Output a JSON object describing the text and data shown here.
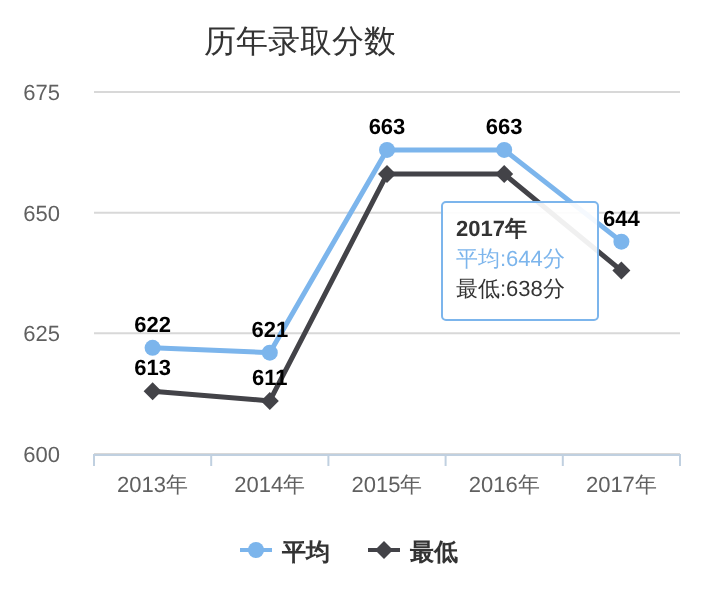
{
  "chart_data": {
    "type": "line",
    "title": "历年录取分数",
    "categories": [
      "2013年",
      "2014年",
      "2015年",
      "2016年",
      "2017年"
    ],
    "series": [
      {
        "name": "平均",
        "color": "#7cb5ec",
        "marker": "circle",
        "values": [
          622,
          621,
          663,
          663,
          644
        ],
        "value_labels": [
          "622",
          "621",
          "663",
          "663",
          "644"
        ]
      },
      {
        "name": "最低",
        "color": "#434348",
        "marker": "diamond",
        "values": [
          613,
          611,
          658,
          658,
          638
        ],
        "value_labels": [
          "613",
          "611",
          null,
          null,
          null
        ]
      }
    ],
    "ylim": [
      600,
      675
    ],
    "yticks": [
      600,
      625,
      650,
      675
    ],
    "grid": "y",
    "legend": "bottom",
    "annotations": [
      "2017年",
      "平均:644分",
      "最低:638分"
    ]
  }
}
